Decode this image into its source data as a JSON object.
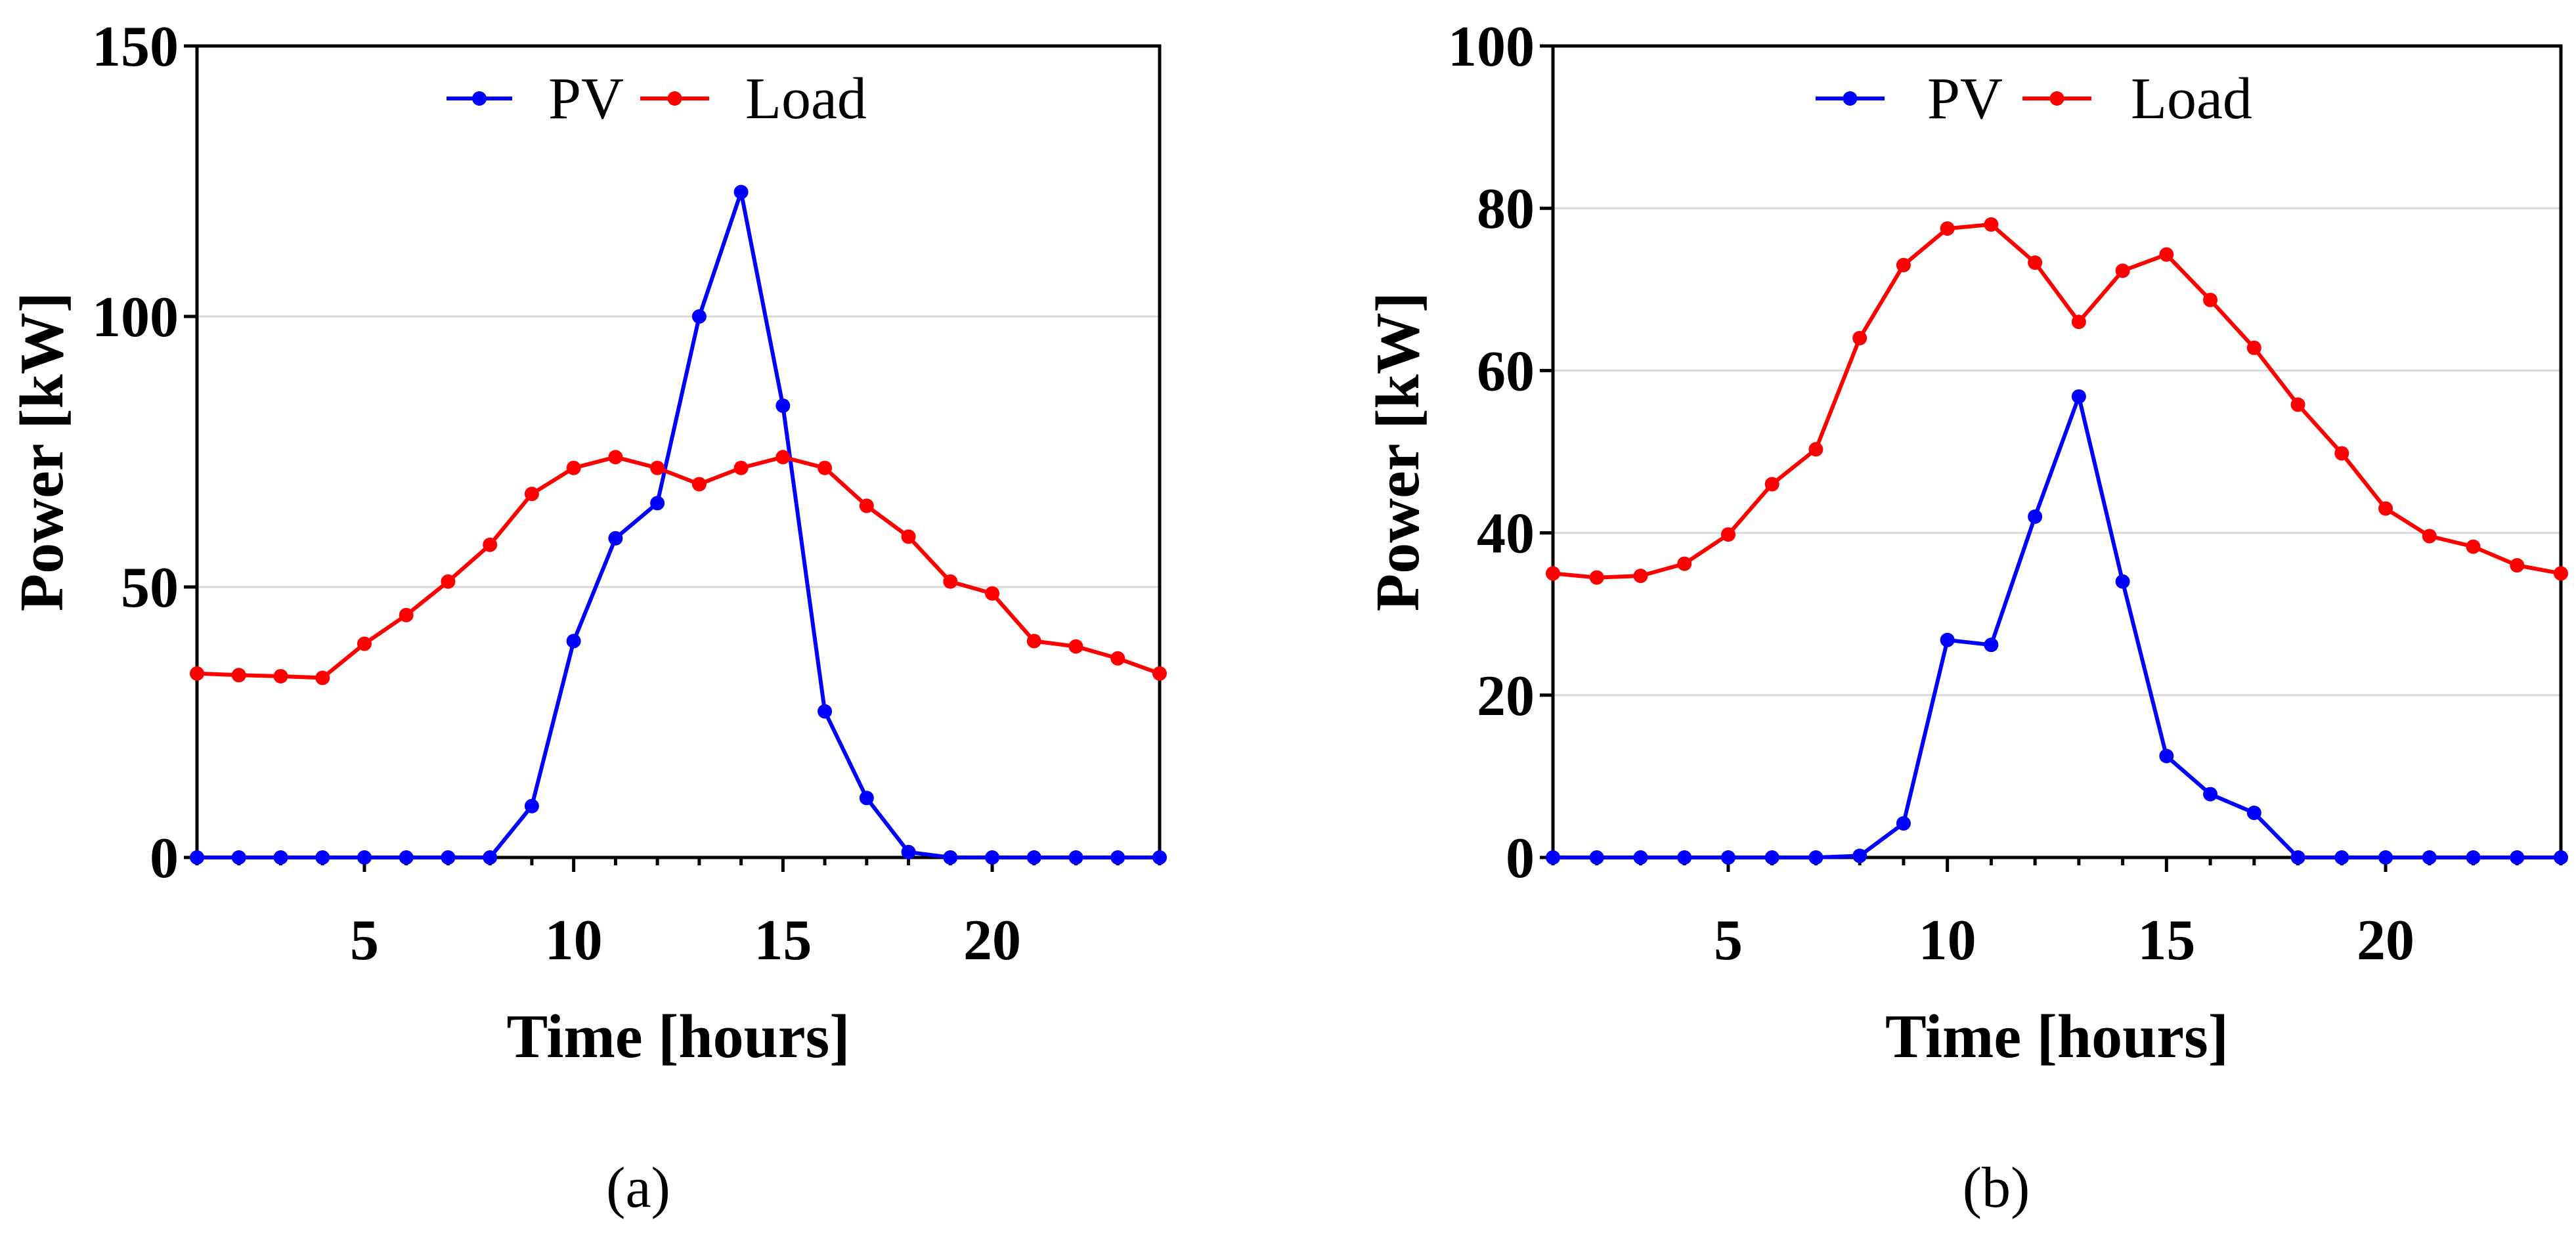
{
  "chart_data": [
    {
      "type": "line",
      "panel_label": "(a)",
      "xlabel": "Time [hours]",
      "ylabel": "Power [kW]",
      "xlim": [
        1,
        24
      ],
      "ylim": [
        0,
        150
      ],
      "xticks": [
        5,
        10,
        15,
        20
      ],
      "yticks": [
        0,
        50,
        100,
        150
      ],
      "grid": "horizontal",
      "legend": "top-center",
      "x": [
        1,
        2,
        3,
        4,
        5,
        6,
        7,
        8,
        9,
        10,
        11,
        12,
        13,
        14,
        15,
        16,
        17,
        18,
        19,
        20,
        21,
        22,
        23,
        24
      ],
      "series": [
        {
          "name": "PV",
          "color": "#0000ff",
          "values": [
            0,
            0,
            0,
            0,
            0,
            0,
            0,
            0,
            9.5,
            40,
            59,
            65.5,
            100,
            123,
            83.5,
            27,
            11,
            1,
            0,
            0,
            0,
            0,
            0,
            0
          ]
        },
        {
          "name": "Load",
          "color": "#ff0000",
          "values": [
            34,
            33.7,
            33.5,
            33.2,
            39.5,
            44.8,
            51,
            57.8,
            67.2,
            72,
            74,
            72,
            69,
            72,
            74,
            72,
            65,
            59.3,
            51,
            48.8,
            40,
            39,
            36.8,
            34
          ]
        }
      ]
    },
    {
      "type": "line",
      "panel_label": "(b)",
      "xlabel": "Time [hours]",
      "ylabel": "Power [kW]",
      "xlim": [
        1,
        24
      ],
      "ylim": [
        0,
        100
      ],
      "xticks": [
        5,
        10,
        15,
        20
      ],
      "yticks": [
        0,
        20,
        40,
        60,
        80,
        100
      ],
      "grid": "horizontal",
      "legend": "top-center",
      "x": [
        1,
        2,
        3,
        4,
        5,
        6,
        7,
        8,
        9,
        10,
        11,
        12,
        13,
        14,
        15,
        16,
        17,
        18,
        19,
        20,
        21,
        22,
        23,
        24
      ],
      "series": [
        {
          "name": "PV",
          "color": "#0000ff",
          "values": [
            0,
            0,
            0,
            0,
            0,
            0,
            0,
            0.2,
            4.2,
            26.8,
            26.2,
            42,
            56.8,
            34,
            12.5,
            7.8,
            5.5,
            0,
            0,
            0,
            0,
            0,
            0,
            0
          ]
        },
        {
          "name": "Load",
          "color": "#ff0000",
          "values": [
            35,
            34.5,
            34.7,
            36.2,
            39.8,
            46,
            50.3,
            64,
            73,
            77.5,
            78,
            73.3,
            66,
            72.3,
            74.3,
            68.7,
            62.8,
            55.8,
            49.8,
            43,
            39.6,
            38.3,
            36,
            35
          ]
        }
      ]
    }
  ]
}
